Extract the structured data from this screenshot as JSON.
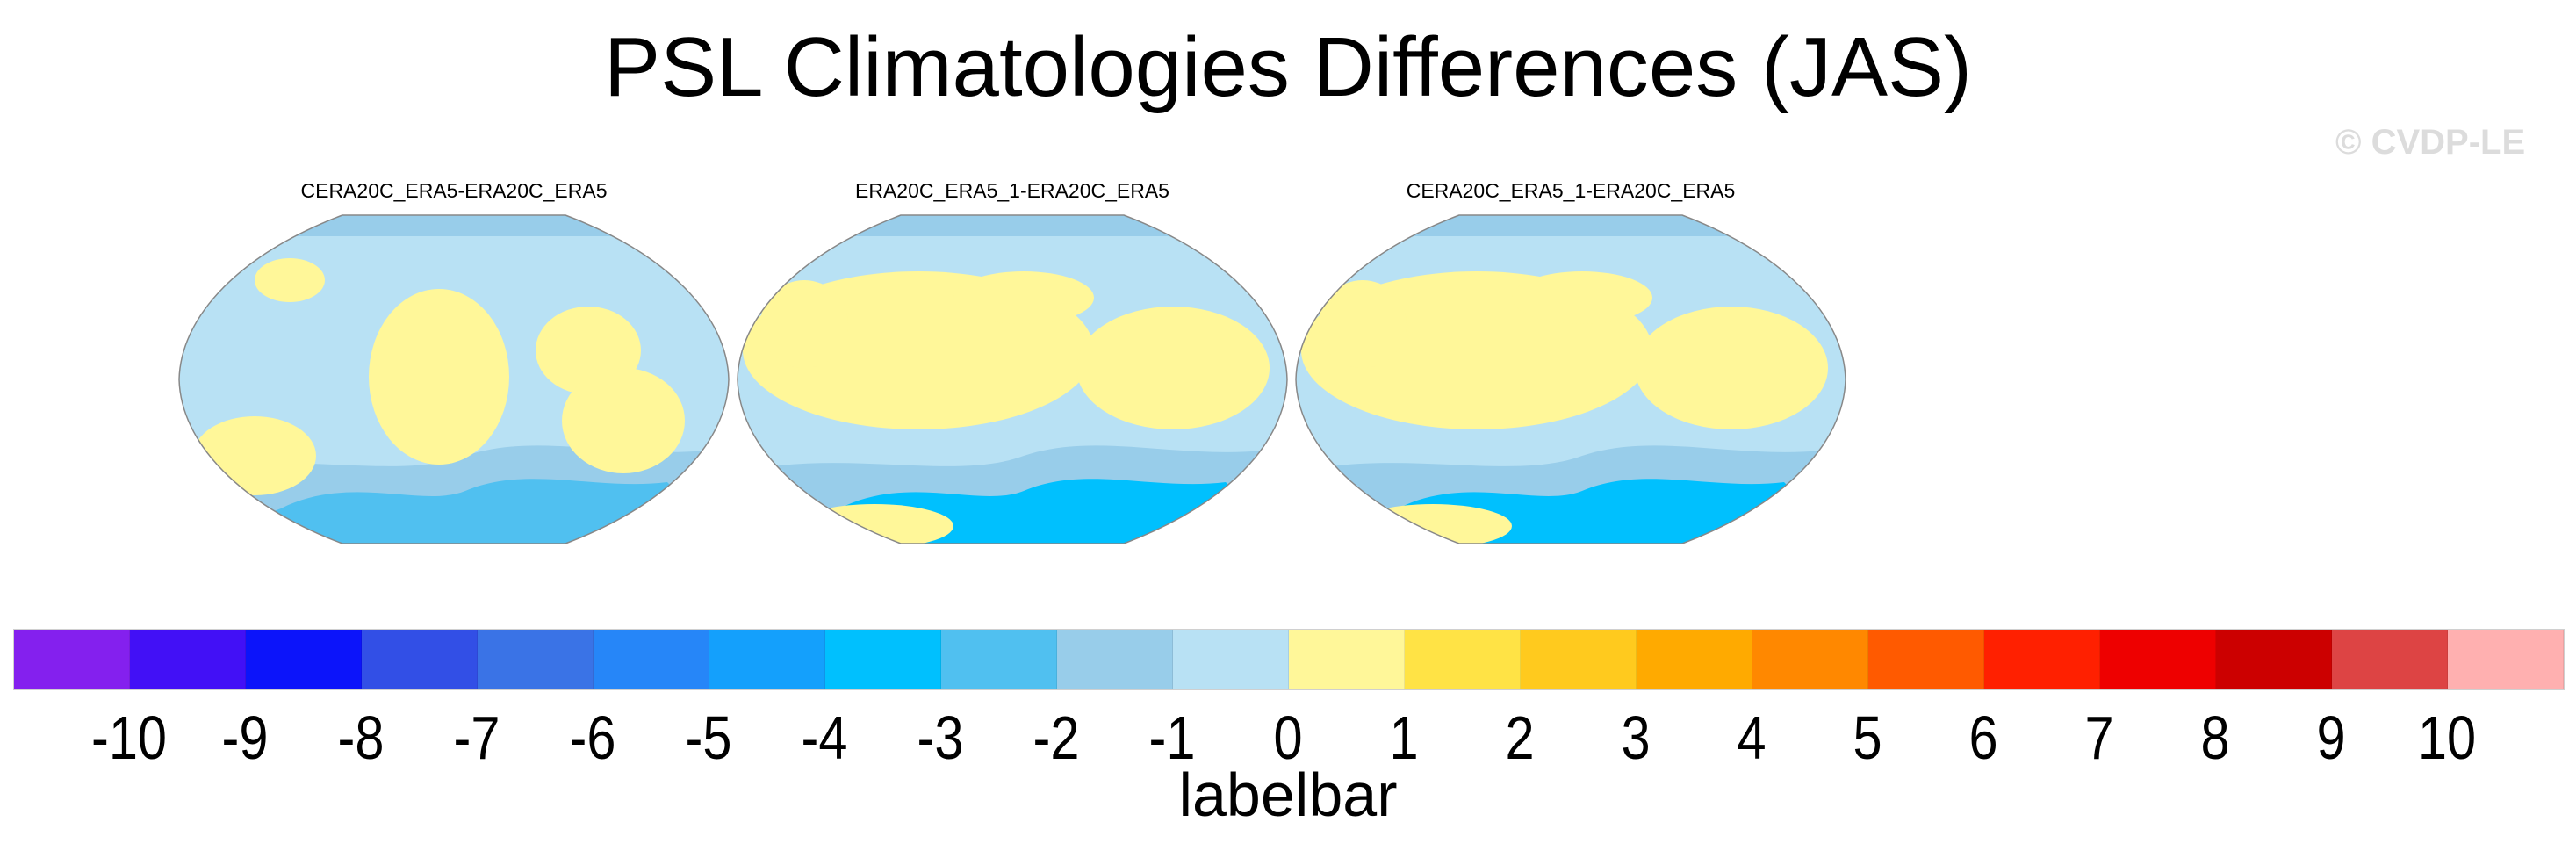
{
  "title": "PSL Climatologies Differences (JAS)",
  "credit": "© CVDP-LE",
  "chart_data": {
    "type": "heatmap",
    "title": "PSL Climatologies Differences (JAS)",
    "panels": [
      {
        "title": "CERA20C_ERA5-ERA20C_ERA5"
      },
      {
        "title": "ERA20C_ERA5_1-ERA20C_ERA5"
      },
      {
        "title": "CERA20C_ERA5_1-ERA20C_ERA5"
      }
    ],
    "colorbar": {
      "label": "labelbar",
      "levels": [
        "-10",
        "-9",
        "-8",
        "-7",
        "-6",
        "-5",
        "-4",
        "-3",
        "-2",
        "-1",
        "0",
        "1",
        "2",
        "3",
        "4",
        "5",
        "6",
        "7",
        "8",
        "9",
        "10"
      ],
      "colors": [
        "#8420ee",
        "#4210f6",
        "#0c14fa",
        "#324fe6",
        "#3a73e6",
        "#2686f8",
        "#14a0fc",
        "#00c0fe",
        "#50c0f0",
        "#98cdea",
        "#b8e1f4",
        "#fff799",
        "#ffe345",
        "#ffca1e",
        "#ffaa00",
        "#ff8800",
        "#ff5a00",
        "#ff2000",
        "#ee0000",
        "#cc0000",
        "#dd4444",
        "#ffb0b0"
      ]
    }
  }
}
